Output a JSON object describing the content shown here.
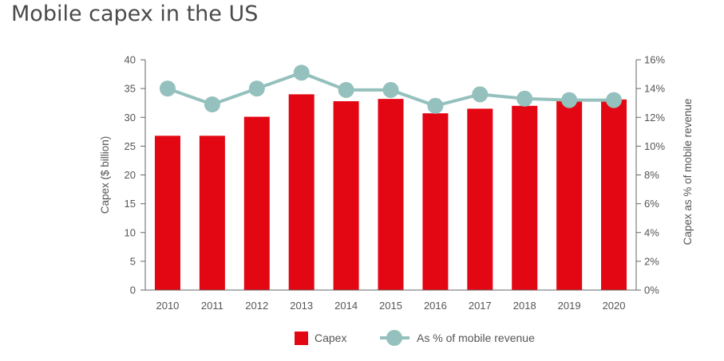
{
  "chart_data": {
    "type": "bar",
    "title": "Mobile capex in the US",
    "categories": [
      "2010",
      "2011",
      "2012",
      "2013",
      "2014",
      "2015",
      "2016",
      "2017",
      "2018",
      "2019",
      "2020"
    ],
    "series": [
      {
        "name": "Capex",
        "type": "bar",
        "axis": "left",
        "values": [
          26.8,
          26.8,
          30.1,
          34.0,
          32.8,
          33.2,
          30.7,
          31.5,
          32.0,
          32.8,
          33.1
        ]
      },
      {
        "name": "As % of mobile revenue",
        "type": "line",
        "axis": "right",
        "values": [
          14.0,
          12.9,
          14.0,
          15.1,
          13.9,
          13.9,
          12.8,
          13.6,
          13.3,
          13.2,
          13.2
        ]
      }
    ],
    "ylabel": "Capex ($ billion)",
    "ylim": [
      0,
      40
    ],
    "yticks": [
      "0",
      "5",
      "10",
      "15",
      "20",
      "25",
      "30",
      "35",
      "40"
    ],
    "y2label": "Capex as % of mobile revenue",
    "y2lim": [
      0,
      16
    ],
    "y2ticks": [
      "0%",
      "2%",
      "4%",
      "6%",
      "8%",
      "10%",
      "12%",
      "14%",
      "16%"
    ],
    "legend": "bottom-center",
    "grid": false,
    "colors": {
      "bar": "#e30613",
      "line": "#94c1bd",
      "axis": "#666666"
    }
  }
}
